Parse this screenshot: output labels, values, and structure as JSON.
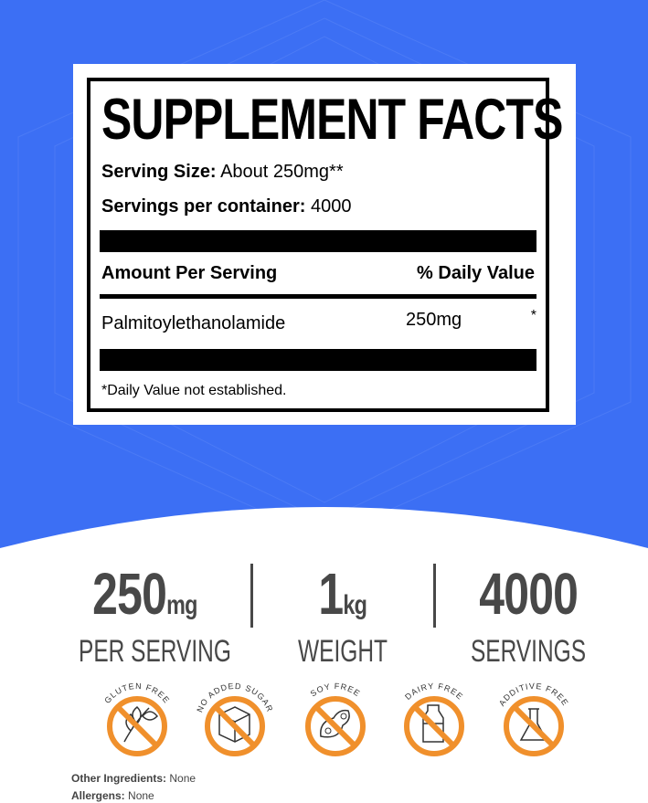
{
  "colors": {
    "background_blue": "#3c6ff4",
    "badge_orange": "#f0902c",
    "stat_gray": "#484848"
  },
  "label": {
    "title": "SUPPLEMENT FACTS",
    "serving_size_label": "Serving Size:",
    "serving_size_value": "About 250mg**",
    "servings_label": "Servings per container:",
    "servings_value": "4000",
    "col_amount": "Amount Per Serving",
    "col_daily": "% Daily Value",
    "ingredient": {
      "name": "Palmitoylethanolamide",
      "amount": "250mg",
      "daily": "*"
    },
    "footnote": "*Daily Value not established."
  },
  "stats": [
    {
      "number": "250",
      "unit": "mg",
      "caption": "PER SERVING"
    },
    {
      "number": "1",
      "unit": "kg",
      "caption": "WEIGHT"
    },
    {
      "number": "4000",
      "unit": "",
      "caption": "SERVINGS"
    }
  ],
  "badges": [
    {
      "text": "GLUTEN FREE",
      "icon": "wheat-icon"
    },
    {
      "text": "NO ADDED SUGAR",
      "icon": "sugar-cube-icon"
    },
    {
      "text": "SOY FREE",
      "icon": "soybean-icon"
    },
    {
      "text": "DAIRY FREE",
      "icon": "milk-bottle-icon"
    },
    {
      "text": "ADDITIVE FREE",
      "icon": "flask-icon"
    }
  ],
  "info": {
    "other_label": "Other Ingredients:",
    "other_value": "None",
    "allergens_label": "Allergens:",
    "allergens_value": "None"
  }
}
